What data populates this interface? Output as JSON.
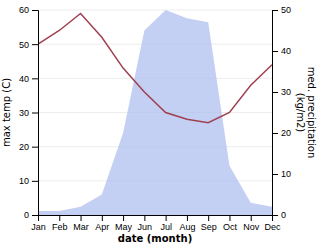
{
  "chart_data": {
    "type": "line",
    "categories": [
      "Jan",
      "Feb",
      "Mar",
      "Apr",
      "May",
      "Jun",
      "Jul",
      "Aug",
      "Sep",
      "Oct",
      "Nov",
      "Dec"
    ],
    "series": [
      {
        "type": "area",
        "axis": "y2",
        "color": "#aabbee",
        "values": [
          1,
          1,
          2,
          5,
          20,
          45,
          50,
          48,
          47,
          12,
          3,
          2
        ]
      },
      {
        "type": "line",
        "color": "#a04050",
        "values": [
          50,
          54,
          59,
          52,
          43,
          36,
          30,
          28,
          27,
          30,
          38,
          44
        ]
      }
    ],
    "xlabel": "date (month)",
    "ylabel": "max temp (C)",
    "y2label": "med. precipitation\n(kg/m2)",
    "ylim": [
      0,
      60
    ],
    "yticks": [
      0,
      10,
      20,
      30,
      40,
      50,
      60
    ],
    "y2lim": [
      0,
      50
    ],
    "y2ticks": [
      0,
      10,
      20,
      30,
      40,
      50
    ],
    "grid": true
  }
}
